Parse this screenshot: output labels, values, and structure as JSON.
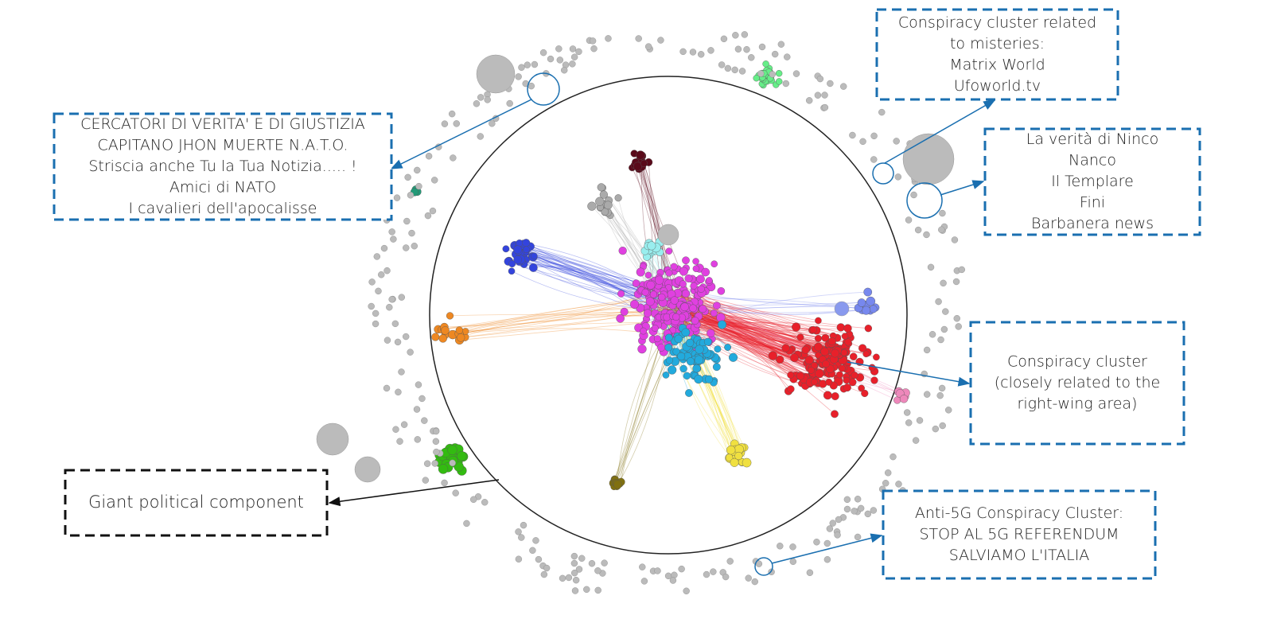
{
  "annotations": [
    {
      "lines": [
        "CERCATORI DI VERITA' E DI GIUSTIZIA",
        "CAPITANO JHON MUERTE N.A.T.O.",
        "Striscia anche Tu la Tua Notizia..... !",
        "Amici di NATO",
        "I cavalieri dell'apocalisse"
      ]
    },
    {
      "lines": [
        "Conspiracy cluster related",
        "to misteries:",
        "Matrix World",
        "Ufoworld.tv"
      ]
    },
    {
      "lines": [
        "La verità di Ninco",
        "Nanco",
        "Il Templare",
        "Fini",
        "Barbanera news"
      ]
    },
    {
      "lines": [
        "Conspiracy cluster",
        "(closely related to the",
        "right-wing area)"
      ]
    },
    {
      "lines": [
        "Giant political component"
      ]
    },
    {
      "lines": [
        "Anti-5G Conspiracy Cluster:",
        "STOP AL 5G REFERENDUM",
        "SALVIAMO L'ITALIA"
      ]
    }
  ]
}
